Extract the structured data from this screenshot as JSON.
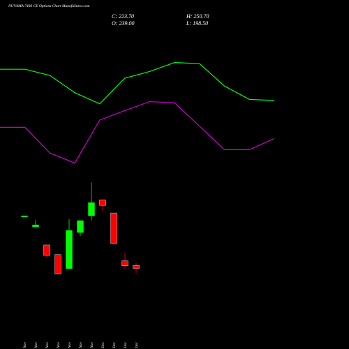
{
  "chart_data": [
    {
      "type": "line",
      "ylim": [
        0,
        100
      ],
      "series": [
        {
          "color": "#00ff00",
          "values": [
            88,
            88,
            82.5,
            67,
            57,
            80,
            86,
            94,
            93,
            73,
            61,
            60
          ]
        },
        {
          "color": "#cc00cc",
          "values": [
            36,
            36,
            13,
            4,
            42.5,
            51,
            59,
            58,
            37,
            16,
            16,
            26
          ]
        }
      ]
    },
    {
      "type": "candlestick",
      "title": "NUVAMA 7400  CE Options  Chart MunafaSutra.com",
      "info_labels": [
        "C: 223.70",
        "H: 250.70",
        "O: 239.00",
        "L: 198.50"
      ],
      "categories": [
        "06 Nov",
        "21 Nov",
        "24 Nov",
        "25 Nov",
        "26 Nov",
        "27 Nov",
        "28 Nov",
        "01 Dec",
        "02 Dec",
        "03 Dec",
        "04 Dec"
      ],
      "open": [
        485,
        430,
        340,
        292,
        223,
        402,
        485,
        564,
        499,
        261,
        239
      ],
      "high": [
        485,
        464,
        340,
        292,
        468,
        461,
        650,
        564,
        499,
        302,
        250.7
      ],
      "low": [
        485,
        430,
        278,
        195,
        223,
        385,
        461,
        509,
        347,
        223,
        198.5
      ],
      "close": [
        485,
        440,
        288,
        195,
        412,
        461,
        550,
        537,
        347,
        237,
        223.7
      ],
      "up_color": "#00ff00",
      "down_color": "#ff0000",
      "ylim": [
        170,
        690
      ]
    }
  ]
}
